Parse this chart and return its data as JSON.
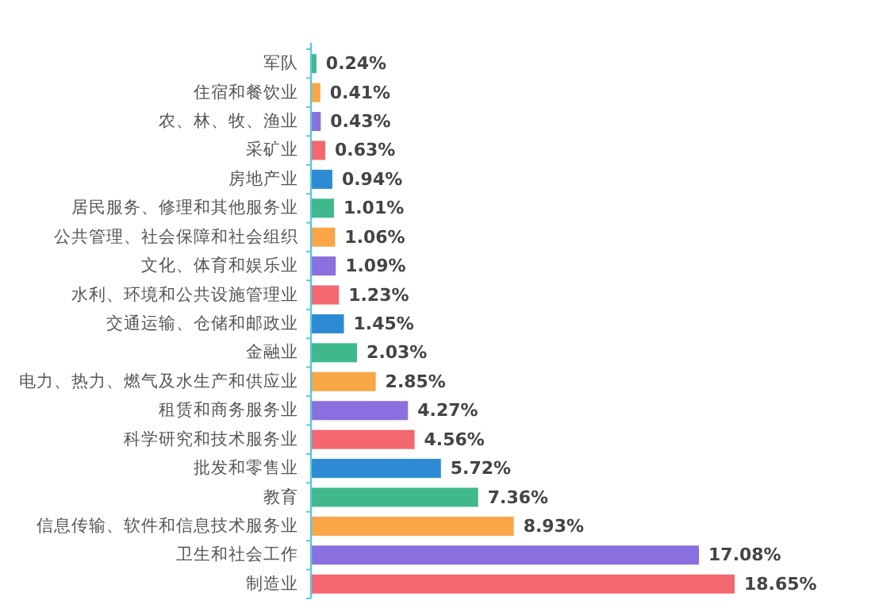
{
  "chart_data": {
    "type": "bar",
    "orientation": "horizontal",
    "categories": [
      "军队",
      "住宿和餐饮业",
      "农、林、牧、渔业",
      "采矿业",
      "房地产业",
      "居民服务、修理和其他服务业",
      "公共管理、社会保障和社会组织",
      "文化、体育和娱乐业",
      "水利、环境和公共设施管理业",
      "交通运输、仓储和邮政业",
      "金融业",
      "电力、热力、燃气及水生产和供应业",
      "租赁和商务服务业",
      "科学研究和技术服务业",
      "批发和零售业",
      "教育",
      "信息传输、软件和信息技术服务业",
      "卫生和社会工作",
      "制造业"
    ],
    "values": [
      0.24,
      0.41,
      0.43,
      0.63,
      0.94,
      1.01,
      1.06,
      1.09,
      1.23,
      1.45,
      2.03,
      2.85,
      4.27,
      4.56,
      5.72,
      7.36,
      8.93,
      17.08,
      18.65
    ],
    "value_labels": [
      "0.24%",
      "0.41%",
      "0.43%",
      "0.63%",
      "0.94%",
      "1.01%",
      "1.06%",
      "1.09%",
      "1.23%",
      "1.45%",
      "2.03%",
      "2.85%",
      "4.27%",
      "4.56%",
      "5.72%",
      "7.36%",
      "8.93%",
      "17.08%",
      "18.65%"
    ],
    "colors": [
      "#3fb98c",
      "#f9a646",
      "#8a6fdf",
      "#f4676f",
      "#2d8bd3",
      "#3fb98c",
      "#f9a646",
      "#8a6fdf",
      "#f4676f",
      "#2d8bd3",
      "#3fb98c",
      "#f9a646",
      "#8a6fdf",
      "#f4676f",
      "#2d8bd3",
      "#3fb98c",
      "#f9a646",
      "#8a6fdf",
      "#f4676f"
    ]
  }
}
